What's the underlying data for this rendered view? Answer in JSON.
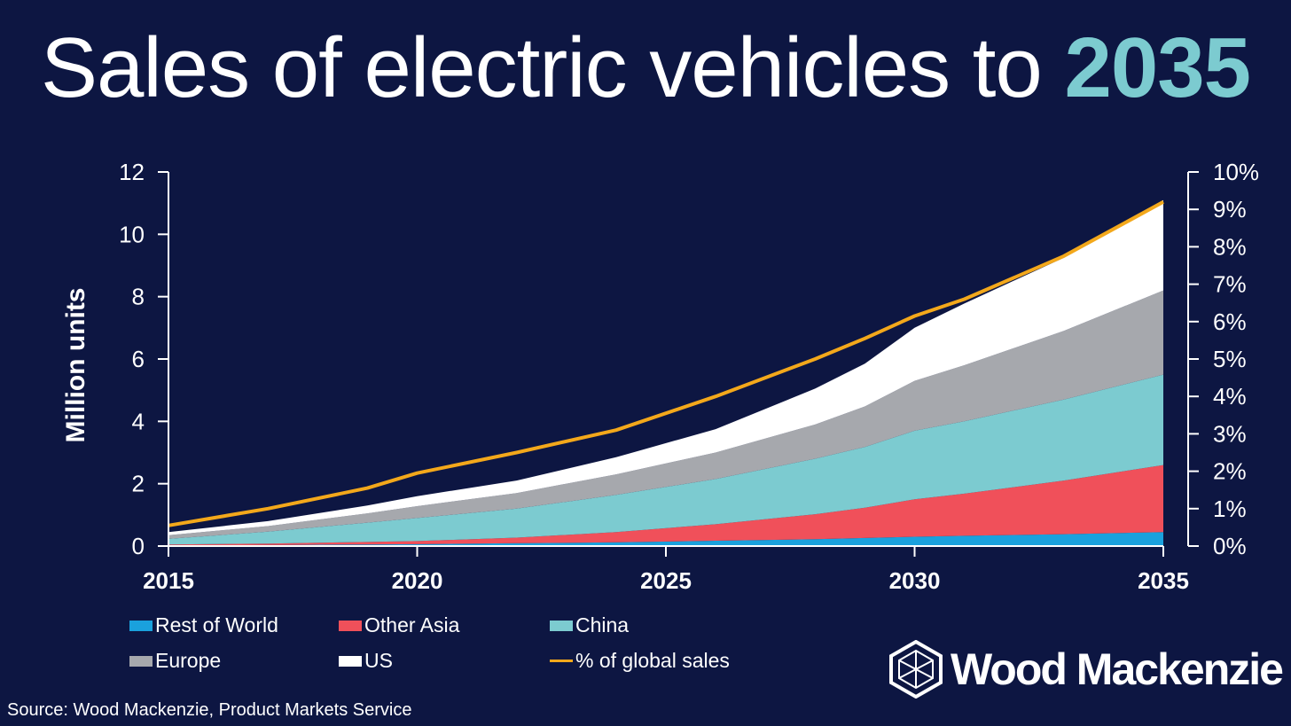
{
  "title": {
    "main": "Sales of electric vehicles to ",
    "highlight": "2035"
  },
  "chart_data": {
    "type": "area",
    "stacked": true,
    "x": [
      2015,
      2017,
      2019,
      2020,
      2022,
      2024,
      2026,
      2028,
      2029,
      2030,
      2031,
      2033,
      2035
    ],
    "series": [
      {
        "name": "Rest of World",
        "color": "#1aa1dd",
        "values": [
          0.02,
          0.03,
          0.05,
          0.06,
          0.09,
          0.12,
          0.17,
          0.22,
          0.26,
          0.3,
          0.33,
          0.38,
          0.45
        ]
      },
      {
        "name": "Other Asia",
        "color": "#f0505a",
        "values": [
          0.03,
          0.05,
          0.08,
          0.1,
          0.18,
          0.33,
          0.53,
          0.8,
          0.97,
          1.2,
          1.35,
          1.72,
          2.15
        ]
      },
      {
        "name": "China",
        "color": "#7ccbd0",
        "values": [
          0.18,
          0.38,
          0.62,
          0.74,
          0.93,
          1.19,
          1.45,
          1.78,
          1.95,
          2.2,
          2.32,
          2.6,
          2.9
        ]
      },
      {
        "name": "Europe",
        "color": "#a6a8ad",
        "values": [
          0.12,
          0.18,
          0.3,
          0.38,
          0.5,
          0.66,
          0.85,
          1.1,
          1.3,
          1.6,
          1.8,
          2.2,
          2.7
        ]
      },
      {
        "name": "US",
        "color": "#ffffff",
        "values": [
          0.1,
          0.16,
          0.25,
          0.32,
          0.4,
          0.55,
          0.75,
          1.15,
          1.37,
          1.7,
          1.98,
          2.35,
          2.9
        ]
      }
    ],
    "line_series": {
      "name": "% of global sales",
      "color": "#f3a81b",
      "axis": "right",
      "x": [
        2015,
        2017,
        2019,
        2020,
        2022,
        2024,
        2026,
        2028,
        2029,
        2030,
        2031,
        2033,
        2035
      ],
      "values": [
        0.55,
        1.0,
        1.55,
        1.95,
        2.5,
        3.1,
        4.0,
        5.0,
        5.55,
        6.15,
        6.6,
        7.75,
        9.2
      ]
    },
    "xticks": [
      "2015",
      "2020",
      "2025",
      "2030",
      "2035"
    ],
    "xlim": [
      2015,
      2035
    ],
    "ylabel": "Million units",
    "ylim": [
      0,
      12
    ],
    "yticks": [
      "0",
      "2",
      "4",
      "6",
      "8",
      "10",
      "12"
    ],
    "y2lim": [
      0,
      10
    ],
    "y2ticks": [
      "0%",
      "1%",
      "2%",
      "3%",
      "4%",
      "5%",
      "6%",
      "7%",
      "8%",
      "9%",
      "10%"
    ],
    "grid": false,
    "legend_position": "bottom-left"
  },
  "legend": [
    {
      "label": "Rest of World",
      "color": "#1aa1dd",
      "kind": "area"
    },
    {
      "label": "Other Asia",
      "color": "#f0505a",
      "kind": "area"
    },
    {
      "label": "China",
      "color": "#7ccbd0",
      "kind": "area"
    },
    {
      "label": "Europe",
      "color": "#a6a8ad",
      "kind": "area"
    },
    {
      "label": "US",
      "color": "#ffffff",
      "kind": "area"
    },
    {
      "label": "% of global sales",
      "color": "#f3a81b",
      "kind": "line"
    }
  ],
  "source": "Source: Wood Mackenzie, Product Markets Service",
  "logo": {
    "text": "Wood Mackenzie",
    "icon": "hexagon-cube-icon"
  }
}
